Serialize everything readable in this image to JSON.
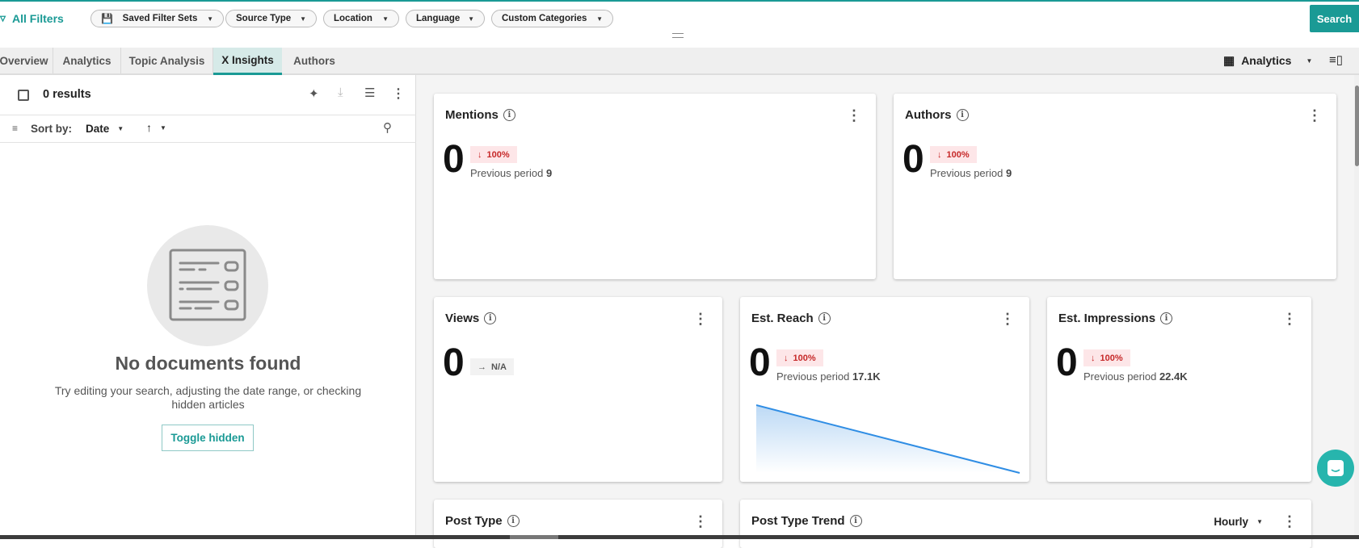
{
  "header": {
    "all_filters": "All Filters",
    "chips": [
      "Saved Filter Sets",
      "Source Type",
      "Location",
      "Language",
      "Custom Categories"
    ],
    "search_label": "Search"
  },
  "tabs": [
    {
      "label": "Overview"
    },
    {
      "label": "Analytics"
    },
    {
      "label": "Topic Analysis"
    },
    {
      "label": "X Insights",
      "active": true
    },
    {
      "label": "Authors"
    }
  ],
  "view_selector": {
    "label": "Analytics"
  },
  "left": {
    "results": "0 results",
    "sort_label": "Sort by:",
    "sort_value": "Date",
    "empty_title": "No documents found",
    "empty_text": "Try editing your search, adjusting the date range, or checking hidden articles",
    "toggle_label": "Toggle hidden"
  },
  "cards": {
    "mentions": {
      "title": "Mentions",
      "value": "0",
      "change": "100%",
      "prev_label": "Previous period",
      "prev_value": "9"
    },
    "authors": {
      "title": "Authors",
      "value": "0",
      "change": "100%",
      "prev_label": "Previous period",
      "prev_value": "9"
    },
    "views": {
      "title": "Views",
      "value": "0",
      "change": "N/A"
    },
    "reach": {
      "title": "Est. Reach",
      "value": "0",
      "change": "100%",
      "prev_label": "Previous period",
      "prev_value": "17.1K",
      "sparkline": {
        "type": "area",
        "values": [
          17100,
          0
        ]
      }
    },
    "impressions": {
      "title": "Est. Impressions",
      "value": "0",
      "change": "100%",
      "prev_label": "Previous period",
      "prev_value": "22.4K"
    },
    "post_type": {
      "title": "Post Type"
    },
    "post_type_trend": {
      "title": "Post Type Trend",
      "interval": "Hourly"
    }
  },
  "colors": {
    "accent": "#1a9a95",
    "negative": "#c62828",
    "line": "#2f8de4"
  }
}
